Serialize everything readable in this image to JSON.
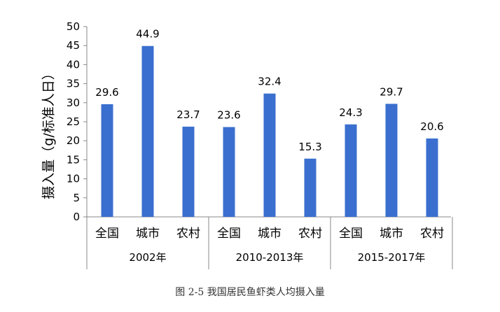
{
  "chart_data": {
    "type": "bar",
    "ylabel": "摄入量（g/标准人日）",
    "ylim": [
      0,
      50
    ],
    "yticks": [
      "0",
      "5",
      "10",
      "15",
      "20",
      "25",
      "30",
      "35",
      "40",
      "45",
      "50"
    ],
    "grid": false,
    "groups": [
      {
        "label": "2002年",
        "categories": [
          "全国",
          "城市",
          "农村"
        ],
        "values": [
          29.6,
          44.9,
          23.7
        ],
        "value_labels": [
          "29.6",
          "44.9",
          "23.7"
        ]
      },
      {
        "label": "2010-2013年",
        "categories": [
          "全国",
          "城市",
          "农村"
        ],
        "values": [
          23.6,
          32.4,
          15.3
        ],
        "value_labels": [
          "23.6",
          "32.4",
          "15.3"
        ]
      },
      {
        "label": "2015-2017年",
        "categories": [
          "全国",
          "城市",
          "农村"
        ],
        "values": [
          24.3,
          29.7,
          20.6
        ],
        "value_labels": [
          "24.3",
          "29.7",
          "20.6"
        ]
      }
    ],
    "bar_color": "#3A6FCF"
  },
  "caption": "图 2-5 我国居民鱼虾类人均摄入量"
}
